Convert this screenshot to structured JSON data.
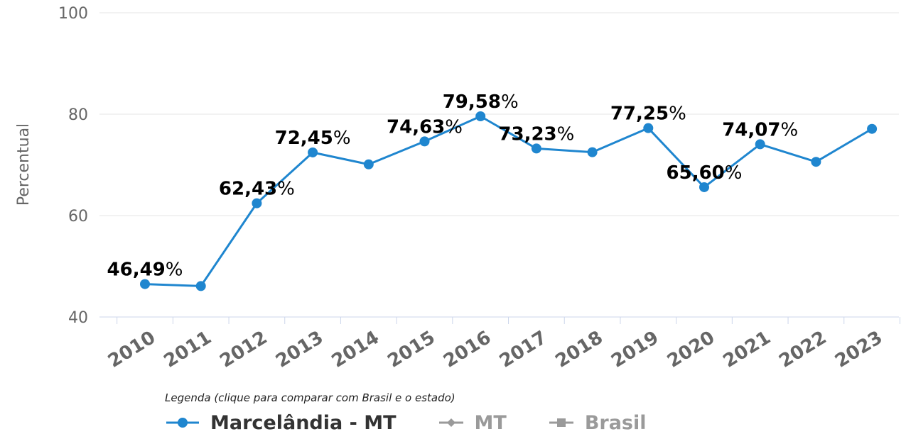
{
  "chart_data": {
    "type": "line",
    "ylabel": "Percentual",
    "ylim": [
      40,
      100
    ],
    "yticks": [
      40,
      60,
      80,
      100
    ],
    "categories": [
      "2010",
      "2011",
      "2012",
      "2013",
      "2014",
      "2015",
      "2016",
      "2017",
      "2018",
      "2019",
      "2020",
      "2021",
      "2022",
      "2023"
    ],
    "series": [
      {
        "name": "Marcelândia - MT",
        "color": "#1f86cf",
        "values": [
          46.49,
          46.1,
          62.43,
          72.45,
          70.1,
          74.63,
          79.58,
          73.23,
          72.5,
          77.25,
          65.6,
          74.07,
          70.6,
          77.1
        ],
        "labels": [
          "46,49%",
          "",
          "62,43%",
          "72,45%",
          "",
          "74,63%",
          "79,58%",
          "73,23%",
          "",
          "77,25%",
          "65,60%",
          "74,07%",
          "",
          ""
        ]
      }
    ],
    "grid": true
  },
  "legend": {
    "title": "Legenda (clique para comparar com Brasil e o estado)",
    "items": [
      {
        "label": "Marcelândia - MT",
        "active": true,
        "color": "#1f86cf",
        "marker": "circle"
      },
      {
        "label": "MT",
        "active": false,
        "color": "#9a9a9a",
        "marker": "diamond"
      },
      {
        "label": "Brasil",
        "active": false,
        "color": "#9a9a9a",
        "marker": "square"
      }
    ]
  }
}
